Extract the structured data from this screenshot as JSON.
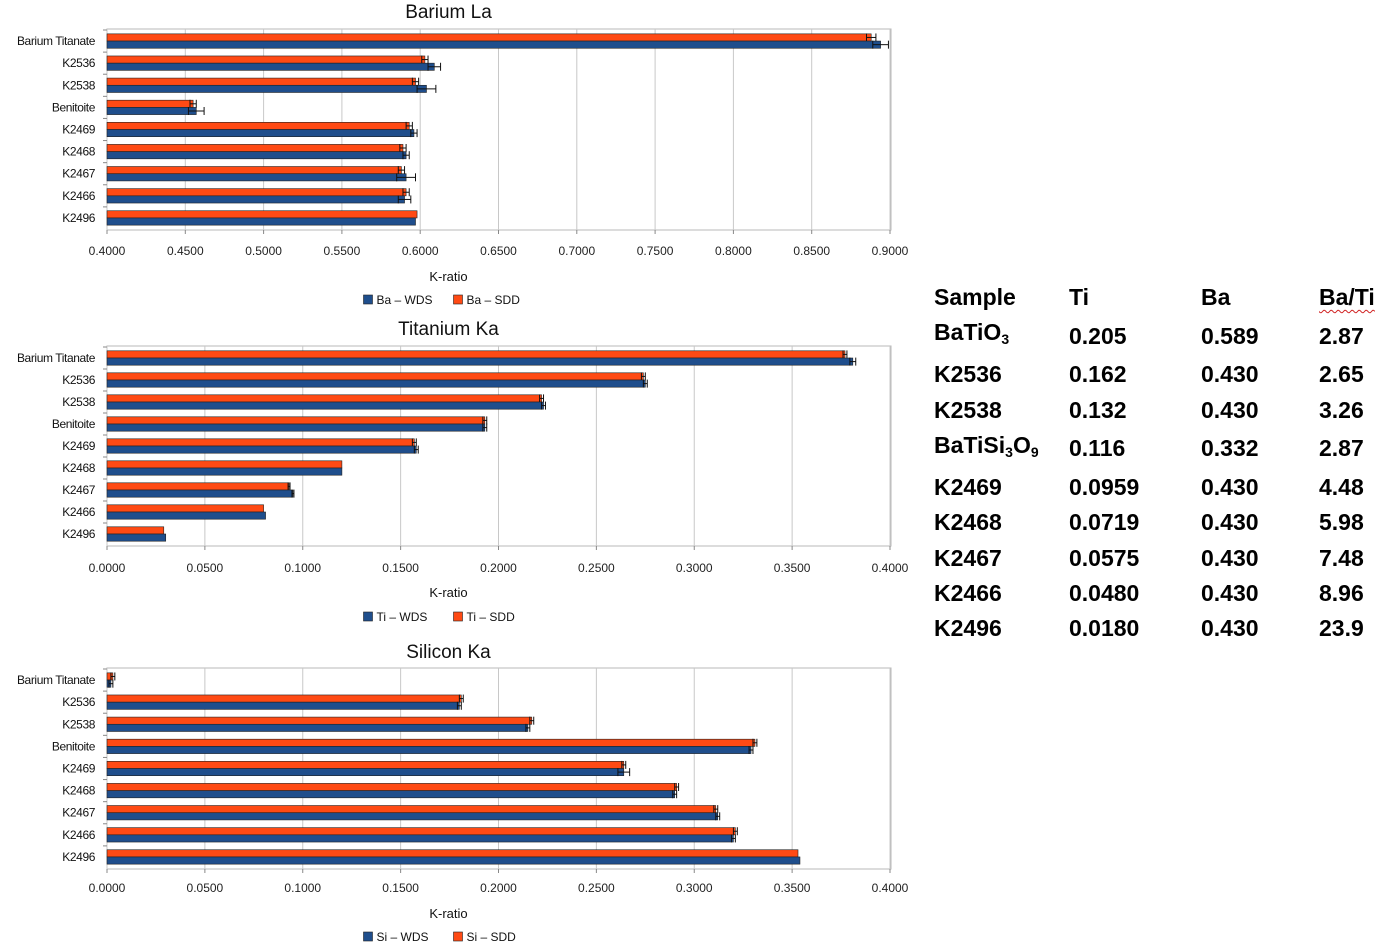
{
  "colors": {
    "wds": "#1f4e8c",
    "sdd": "#ff4a14",
    "grid": "#c8c8c8",
    "frame": "#b8b8b8"
  },
  "chart_data": [
    {
      "type": "bar",
      "orientation": "horizontal",
      "title": "Barium La",
      "xlabel": "K-ratio",
      "xlim": [
        0.4,
        0.9
      ],
      "ticks": [
        "0.4000",
        "0.4500",
        "0.5000",
        "0.5500",
        "0.6000",
        "0.6500",
        "0.7000",
        "0.7500",
        "0.8000",
        "0.8500",
        "0.9000"
      ],
      "tick_values": [
        0.4,
        0.45,
        0.5,
        0.55,
        0.6,
        0.65,
        0.7,
        0.75,
        0.8,
        0.85,
        0.9
      ],
      "categories": [
        "Barium Titanate",
        "K2536",
        "K2538",
        "Benitoite",
        "K2469",
        "K2468",
        "K2467",
        "K2466",
        "K2496"
      ],
      "series": [
        {
          "name": "Ba – WDS",
          "key": "wds",
          "values": [
            0.894,
            0.609,
            0.604,
            0.457,
            0.596,
            0.591,
            0.591,
            0.59,
            0.597
          ],
          "errors": [
            0.005,
            0.004,
            0.006,
            0.005,
            0.002,
            0.002,
            0.006,
            0.004,
            0.0
          ]
        },
        {
          "name": "Ba – SDD",
          "key": "sdd",
          "values": [
            0.888,
            0.603,
            0.597,
            0.455,
            0.593,
            0.589,
            0.588,
            0.591,
            0.598
          ],
          "errors": [
            0.003,
            0.002,
            0.002,
            0.002,
            0.002,
            0.002,
            0.002,
            0.002,
            0.0
          ]
        }
      ],
      "legend": [
        "Ba – WDS",
        "Ba – SDD"
      ],
      "legend_position": "bottom"
    },
    {
      "type": "bar",
      "orientation": "horizontal",
      "title": "Titanium Ka",
      "xlabel": "K-ratio",
      "xlim": [
        0.0,
        0.4
      ],
      "ticks": [
        "0.0000",
        "0.0500",
        "0.1000",
        "0.1500",
        "0.2000",
        "0.2500",
        "0.3000",
        "0.3500",
        "0.4000"
      ],
      "tick_values": [
        0.0,
        0.05,
        0.1,
        0.15,
        0.2,
        0.25,
        0.3,
        0.35,
        0.4
      ],
      "categories": [
        "Barium Titanate",
        "K2536",
        "K2538",
        "Benitoite",
        "K2469",
        "K2468",
        "K2467",
        "K2466",
        "K2496"
      ],
      "series": [
        {
          "name": "Ti – WDS",
          "key": "wds",
          "values": [
            0.381,
            0.275,
            0.223,
            0.193,
            0.158,
            0.12,
            0.095,
            0.081,
            0.03
          ],
          "errors": [
            0.0015,
            0.001,
            0.001,
            0.001,
            0.001,
            0.0,
            0.0005,
            0.0,
            0.0
          ]
        },
        {
          "name": "Ti – SDD",
          "key": "sdd",
          "values": [
            0.377,
            0.274,
            0.222,
            0.193,
            0.157,
            0.12,
            0.093,
            0.08,
            0.029
          ],
          "errors": [
            0.001,
            0.001,
            0.001,
            0.001,
            0.001,
            0.0,
            0.0005,
            0.0,
            0.0
          ]
        }
      ],
      "legend": [
        "Ti – WDS",
        "Ti – SDD"
      ],
      "legend_position": "bottom"
    },
    {
      "type": "bar",
      "orientation": "horizontal",
      "title": "Silicon Ka",
      "xlabel": "K-ratio",
      "xlim": [
        0.0,
        0.4
      ],
      "ticks": [
        "0.0000",
        "0.0500",
        "0.1000",
        "0.1500",
        "0.2000",
        "0.2500",
        "0.3000",
        "0.3500",
        "0.4000"
      ],
      "tick_values": [
        0.0,
        0.05,
        0.1,
        0.15,
        0.2,
        0.25,
        0.3,
        0.35,
        0.4
      ],
      "categories": [
        "Barium Titanate",
        "K2536",
        "K2538",
        "Benitoite",
        "K2469",
        "K2468",
        "K2467",
        "K2466",
        "K2496"
      ],
      "series": [
        {
          "name": "Si – WDS",
          "key": "wds",
          "values": [
            0.002,
            0.18,
            0.215,
            0.329,
            0.264,
            0.29,
            0.312,
            0.32,
            0.354
          ],
          "errors": [
            0.001,
            0.001,
            0.001,
            0.001,
            0.003,
            0.001,
            0.001,
            0.001,
            0.0
          ]
        },
        {
          "name": "Si – SDD",
          "key": "sdd",
          "values": [
            0.003,
            0.181,
            0.217,
            0.331,
            0.264,
            0.291,
            0.311,
            0.321,
            0.353
          ],
          "errors": [
            0.001,
            0.001,
            0.001,
            0.001,
            0.001,
            0.001,
            0.001,
            0.001,
            0.0
          ]
        }
      ],
      "legend": [
        "Si – WDS",
        "Si – SDD"
      ],
      "legend_position": "bottom"
    }
  ],
  "table": {
    "headers": [
      "Sample",
      "Ti",
      "Ba",
      "Ba/Ti"
    ],
    "rows": [
      {
        "sample": "BaTiO",
        "sub": [
          "3"
        ],
        "ti": "0.205",
        "ba": "0.589",
        "ratio": "2.87"
      },
      {
        "sample": "K2536",
        "ti": "0.162",
        "ba": "0.430",
        "ratio": "2.65"
      },
      {
        "sample": "K2538",
        "ti": "0.132",
        "ba": "0.430",
        "ratio": "3.26"
      },
      {
        "sample": "BaTiSi",
        "sub": [
          "3"
        ],
        "sample2": "O",
        "ti": "0.116",
        "ba": "0.332",
        "ratio": "2.87"
      },
      {
        "sample": "K2469",
        "ti": "0.0959",
        "ba": "0.430",
        "ratio": "4.48"
      },
      {
        "sample": "K2468",
        "ti": "0.0719",
        "ba": "0.430",
        "ratio": "5.98"
      },
      {
        "sample": "K2467",
        "ti": "0.0575",
        "ba": "0.430",
        "ratio": "7.48"
      },
      {
        "sample": "K2466",
        "ti": "0.0480",
        "ba": "0.430",
        "ratio": "8.96"
      },
      {
        "sample": "K2496",
        "ti": "0.0180",
        "ba": "0.430",
        "ratio": "23.9"
      }
    ],
    "benitoite_sub2": "9"
  }
}
